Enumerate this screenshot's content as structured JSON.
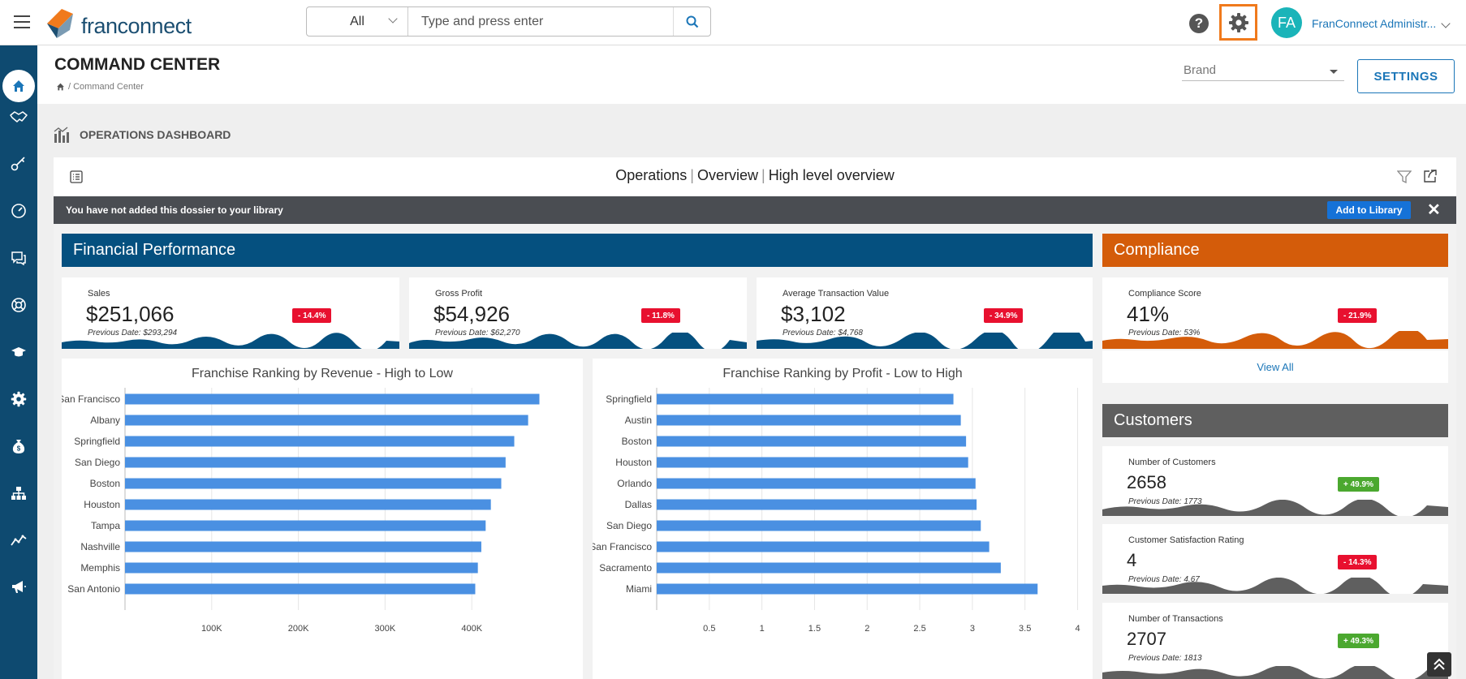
{
  "app": {
    "logo_text": "franconnect"
  },
  "search": {
    "scope": "All",
    "placeholder": "Type and press enter"
  },
  "user": {
    "initials": "FA",
    "name": "FranConnect Administr..."
  },
  "header": {
    "title": "COMMAND CENTER",
    "breadcrumb": "/ Command Center",
    "brand_placeholder": "Brand",
    "settings_label": "SETTINGS"
  },
  "dashboard": {
    "label": "OPERATIONS DASHBOARD",
    "crumbs": [
      "Operations",
      "Overview",
      "High level overview"
    ],
    "banner_text": "You have not added this dossier to your library",
    "add_library_label": "Add to Library"
  },
  "sections": {
    "financial": "Financial Performance",
    "compliance": "Compliance",
    "customers": "Customers"
  },
  "kpis": {
    "sales": {
      "label": "Sales",
      "value": "$251,066",
      "prev": "Previous Date: $293,294",
      "change": "- 14.4%"
    },
    "gross_profit": {
      "label": "Gross Profit",
      "value": "$54,926",
      "prev": "Previous Date: $62,270",
      "change": "- 11.8%"
    },
    "avg_txn": {
      "label": "Average Transaction Value",
      "value": "$3,102",
      "prev": "Previous Date: $4,768",
      "change": "- 34.9%"
    },
    "compliance": {
      "label": "Compliance Score",
      "value": "41%",
      "prev": "Previous Date: 53%",
      "change": "- 21.9%"
    },
    "customers": {
      "label": "Number of Customers",
      "value": "2658",
      "prev": "Previous Date: 1773",
      "change": "+ 49.9%"
    },
    "satisfaction": {
      "label": "Customer Satisfaction Rating",
      "value": "4",
      "prev": "Previous Date: 4.67",
      "change": "- 14.3%"
    },
    "transactions": {
      "label": "Number of Transactions",
      "value": "2707",
      "prev": "Previous Date: 1813",
      "change": "+ 49.3%"
    }
  },
  "view_all_label": "View All",
  "colors": {
    "accent": "#1b76b8",
    "financial": "#05507f",
    "compliance": "#d45c0a",
    "customers": "#5f5f5f",
    "bar": "#4a90e2",
    "negative": "#e8102f",
    "positive": "#4ba82f",
    "sidebar": "#0e4a70",
    "settings_highlight": "#f07a1c"
  },
  "sidebar": {
    "icons": [
      "home-icon",
      "handshake-icon",
      "key-icon",
      "gauge-icon",
      "chat-icon",
      "lifebuoy-icon",
      "graduation-cap-icon",
      "settings-icon",
      "money-bag-icon",
      "org-chart-icon",
      "trend-line-icon",
      "megaphone-icon"
    ]
  },
  "chart_data": [
    {
      "type": "bar",
      "orientation": "horizontal",
      "title": "Franchise Ranking by Revenue - High to Low",
      "categories": [
        "San Francisco",
        "Albany",
        "Springfield",
        "San Diego",
        "Boston",
        "Houston",
        "Tampa",
        "Nashville",
        "Memphis",
        "San Antonio"
      ],
      "values": [
        478000,
        465000,
        449000,
        439000,
        434000,
        422000,
        416000,
        411000,
        407000,
        404000
      ],
      "xticks": [
        "100K",
        "200K",
        "300K",
        "400K"
      ],
      "xtick_values": [
        100000,
        200000,
        300000,
        400000
      ],
      "xlim": [
        0,
        500000
      ]
    },
    {
      "type": "bar",
      "orientation": "horizontal",
      "title": "Franchise Ranking by Profit - Low to High",
      "categories": [
        "Springfield",
        "Austin",
        "Boston",
        "Houston",
        "Orlando",
        "Dallas",
        "San Diego",
        "San Francisco",
        "Sacramento",
        "Miami"
      ],
      "values": [
        2.82,
        2.89,
        2.94,
        2.96,
        3.03,
        3.04,
        3.08,
        3.16,
        3.27,
        3.62
      ],
      "xticks": [
        "0.5",
        "1",
        "1.5",
        "2",
        "2.5",
        "3",
        "3.5",
        "4"
      ],
      "xtick_values": [
        0.5,
        1,
        1.5,
        2,
        2.5,
        3,
        3.5,
        4
      ],
      "xlim": [
        0,
        4.05
      ]
    }
  ]
}
